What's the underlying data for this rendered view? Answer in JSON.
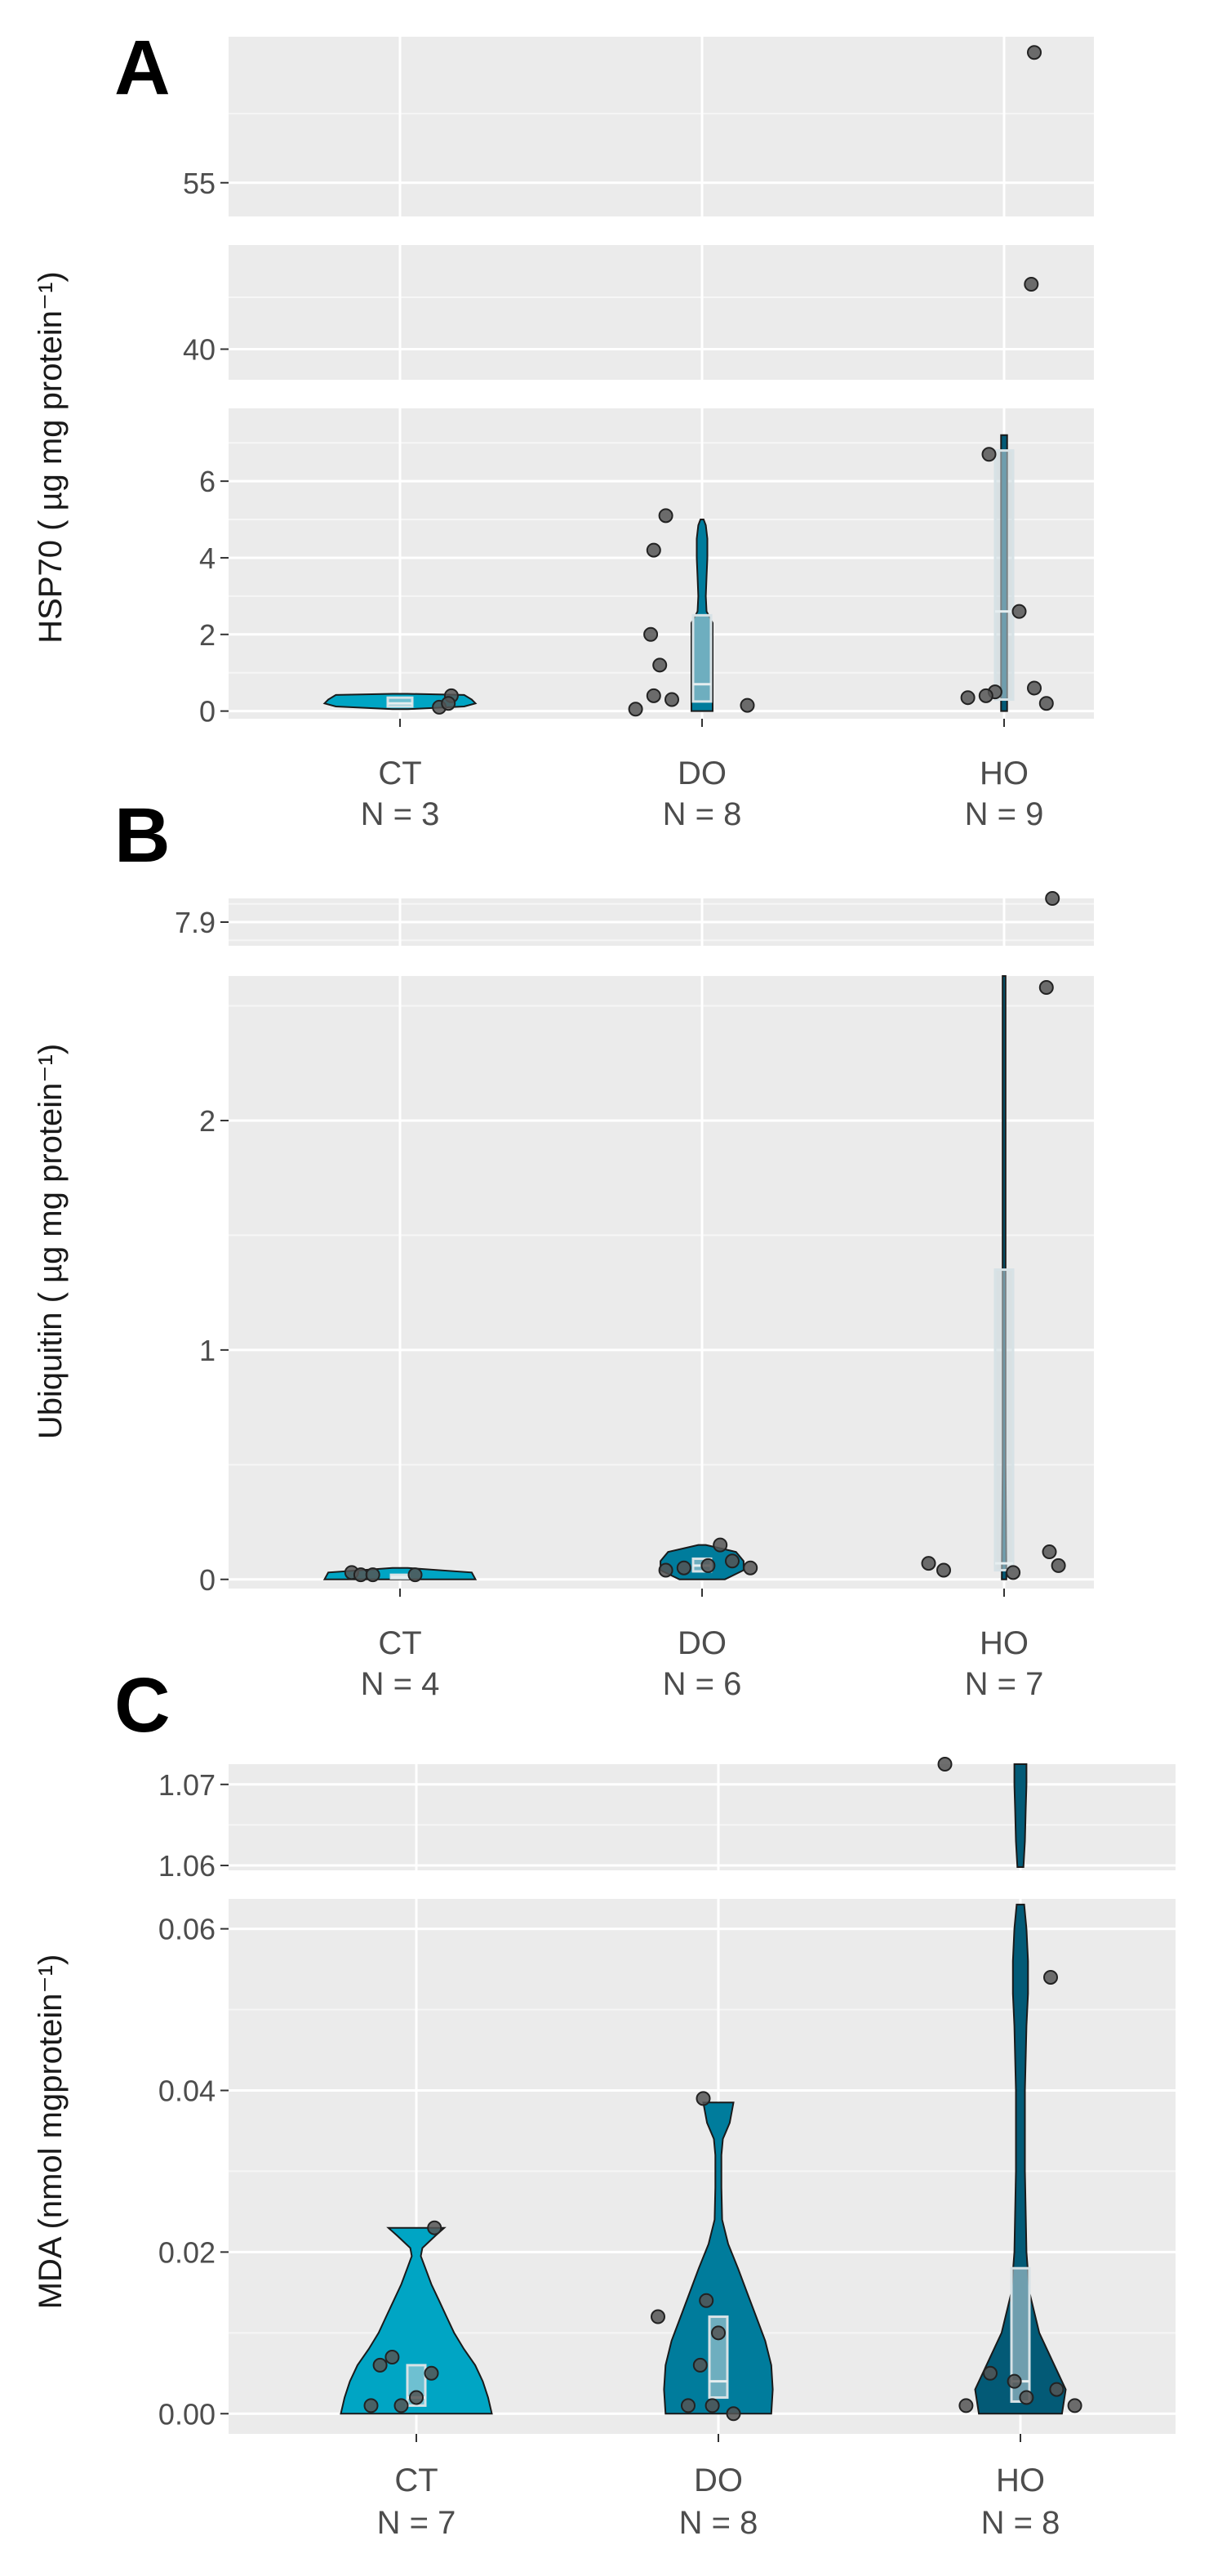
{
  "chart_data": [
    {
      "type": "violin",
      "panel_letter": "A",
      "ylabel": "HSP70 ( µg mg protein⁻¹)",
      "categories": [
        "CT",
        "DO",
        "HO"
      ],
      "n_labels": [
        "N = 3",
        "N = 8",
        "N = 9"
      ],
      "colors": [
        "#00a5c4",
        "#007c9c",
        "#035a76"
      ],
      "segments": [
        {
          "ylim": [
            -0.2,
            7.9
          ],
          "ticks": [
            0,
            2,
            4,
            6
          ],
          "tick_labels": [
            "0",
            "2",
            "4",
            "6"
          ]
        },
        {
          "ylim": [
            37.5,
            48.5
          ],
          "ticks": [
            40
          ],
          "tick_labels": [
            "40"
          ]
        },
        {
          "ylim": [
            53.5,
            61.5
          ],
          "ticks": [
            55
          ],
          "tick_labels": [
            "55"
          ]
        }
      ],
      "groups": [
        {
          "points": [
            [
              0.13,
              0.1
            ],
            [
              0.17,
              0.4
            ],
            [
              0.16,
              0.2
            ]
          ],
          "box": {
            "q1": 0.12,
            "median": 0.2,
            "q3": 0.35
          },
          "violin": [
            [
              0.05,
              0.1
            ],
            [
              0.12,
              0.85
            ],
            [
              0.2,
              1
            ],
            [
              0.3,
              0.95
            ],
            [
              0.42,
              0.85
            ],
            [
              0.45,
              0.1
            ]
          ]
        },
        {
          "points": [
            [
              -0.12,
              5.1
            ],
            [
              -0.16,
              4.2
            ],
            [
              -0.17,
              2.0
            ],
            [
              -0.14,
              1.2
            ],
            [
              -0.16,
              0.4
            ],
            [
              -0.22,
              0.05
            ],
            [
              -0.1,
              0.3
            ],
            [
              0.15,
              0.15
            ]
          ],
          "box": {
            "q1": 0.25,
            "median": 0.7,
            "q3": 2.5
          },
          "violin": [
            [
              0.0,
              0.14
            ],
            [
              0.3,
              0.14
            ],
            [
              0.7,
              0.14
            ],
            [
              1.5,
              0.14
            ],
            [
              2.3,
              0.14
            ],
            [
              2.6,
              0.06
            ],
            [
              3.0,
              0.05
            ],
            [
              3.5,
              0.06
            ],
            [
              4.0,
              0.07
            ],
            [
              4.5,
              0.07
            ],
            [
              4.85,
              0.05
            ],
            [
              5.0,
              0.02
            ]
          ]
        },
        {
          "points": [
            [
              60.8,
              60.8
            ],
            [
              45.3,
              45.3
            ],
            [
              6.7,
              6.7
            ],
            [
              2.6,
              2.6
            ],
            [
              0.6,
              0.6
            ],
            [
              0.5,
              0.5
            ],
            [
              0.4,
              0.4
            ],
            [
              0.35,
              0.35
            ],
            [
              0.2,
              0.2
            ]
          ],
          "point_x": [
            0.1,
            0.09,
            -0.05,
            0.05,
            0.1,
            -0.03,
            -0.06,
            -0.12,
            0.14
          ],
          "box": {
            "q1": 0.3,
            "median": 2.6,
            "q3": 6.8
          },
          "violin": [
            [
              0.0,
              0.04
            ],
            [
              0.5,
              0.04
            ],
            [
              2.0,
              0.04
            ],
            [
              4.0,
              0.04
            ],
            [
              6.0,
              0.04
            ],
            [
              7.2,
              0.04
            ]
          ]
        }
      ]
    },
    {
      "type": "violin",
      "panel_letter": "B",
      "ylabel": "Ubiquitin ( µg mg protein⁻¹)",
      "categories": [
        "CT",
        "DO",
        "HO"
      ],
      "n_labels": [
        "N = 4",
        "N = 6",
        "N = 7"
      ],
      "colors": [
        "#00a5c4",
        "#007c9c",
        "#035a76"
      ],
      "segments": [
        {
          "ylim": [
            -0.04,
            2.63
          ],
          "ticks": [
            0,
            1,
            2
          ],
          "tick_labels": [
            "0",
            "1",
            "2"
          ]
        },
        {
          "ylim": [
            7.86,
            7.94
          ],
          "ticks": [
            7.9
          ],
          "tick_labels": [
            "7.9"
          ]
        }
      ],
      "groups": [
        {
          "points": [
            [
              -0.16,
              0.03
            ],
            [
              -0.13,
              0.02
            ],
            [
              -0.09,
              0.02
            ],
            [
              0.05,
              0.02
            ]
          ],
          "box": {
            "q1": 0.005,
            "median": 0.01,
            "q3": 0.02
          },
          "violin": [
            [
              0.0,
              1
            ],
            [
              0.03,
              0.95
            ],
            [
              0.05,
              0.1
            ]
          ]
        },
        {
          "points": [
            [
              -0.12,
              0.04
            ],
            [
              -0.06,
              0.05
            ],
            [
              0.02,
              0.06
            ],
            [
              0.06,
              0.15
            ],
            [
              0.1,
              0.08
            ],
            [
              0.16,
              0.05
            ]
          ],
          "box": {
            "q1": 0.035,
            "median": 0.06,
            "q3": 0.09
          },
          "violin": [
            [
              0.0,
              0.3
            ],
            [
              0.04,
              0.55
            ],
            [
              0.08,
              0.55
            ],
            [
              0.12,
              0.45
            ],
            [
              0.15,
              0.05
            ]
          ]
        },
        {
          "points": [
            [
              7.95,
              7.95
            ],
            [
              2.58,
              2.58
            ],
            [
              0.12,
              0.12
            ],
            [
              0.07,
              0.07
            ],
            [
              0.06,
              0.06
            ],
            [
              0.04,
              0.04
            ],
            [
              0.03,
              0.03
            ]
          ],
          "point_x": [
            0.16,
            0.14,
            0.15,
            -0.25,
            0.18,
            -0.2,
            0.03
          ],
          "box": {
            "q1": 0.04,
            "median": 0.07,
            "q3": 1.35
          },
          "violin": [
            [
              0.0,
              0.03
            ],
            [
              0.5,
              0.02
            ],
            [
              1.0,
              0.02
            ],
            [
              2.0,
              0.02
            ],
            [
              2.63,
              0.02
            ]
          ]
        }
      ]
    },
    {
      "type": "violin",
      "panel_letter": "C",
      "ylabel": "MDA (nmol mgprotein⁻¹)",
      "categories": [
        "CT",
        "DO",
        "HO"
      ],
      "n_labels": [
        "N = 7",
        "N = 8",
        "N = 8"
      ],
      "colors": [
        "#00a5c4",
        "#007c9c",
        "#035a76"
      ],
      "segments": [
        {
          "ylim": [
            -0.0025,
            0.0637
          ],
          "ticks": [
            0.0,
            0.02,
            0.04,
            0.06
          ],
          "tick_labels": [
            "0.00",
            "0.02",
            "0.04",
            "0.06"
          ]
        },
        {
          "ylim": [
            1.0594,
            1.0725
          ],
          "ticks": [
            1.06,
            1.07
          ],
          "tick_labels": [
            "1.06",
            "1.07"
          ]
        }
      ],
      "groups": [
        {
          "points": [
            [
              0.06,
              0.023
            ],
            [
              -0.08,
              0.007
            ],
            [
              -0.12,
              0.006
            ],
            [
              0.05,
              0.005
            ],
            [
              0.0,
              0.002
            ],
            [
              -0.05,
              0.001
            ],
            [
              -0.15,
              0.001
            ]
          ],
          "box": {
            "q1": 0.001,
            "median": 0.002,
            "q3": 0.006
          },
          "violin": [
            [
              0.0,
              1
            ],
            [
              0.002,
              0.95
            ],
            [
              0.004,
              0.88
            ],
            [
              0.006,
              0.78
            ],
            [
              0.008,
              0.63
            ],
            [
              0.01,
              0.5
            ],
            [
              0.012,
              0.4
            ],
            [
              0.014,
              0.3
            ],
            [
              0.016,
              0.2
            ],
            [
              0.018,
              0.12
            ],
            [
              0.0195,
              0.06
            ],
            [
              0.0205,
              0.08
            ],
            [
              0.022,
              0.25
            ],
            [
              0.023,
              0.37
            ]
          ]
        },
        {
          "points": [
            [
              -0.05,
              0.039
            ],
            [
              -0.2,
              0.012
            ],
            [
              -0.04,
              0.014
            ],
            [
              0.0,
              0.01
            ],
            [
              -0.06,
              0.006
            ],
            [
              -0.1,
              0.001
            ],
            [
              -0.02,
              0.001
            ],
            [
              0.05,
              0.0
            ]
          ],
          "box": {
            "q1": 0.002,
            "median": 0.004,
            "q3": 0.012
          },
          "violin": [
            [
              0.0,
              0.7
            ],
            [
              0.003,
              0.72
            ],
            [
              0.006,
              0.7
            ],
            [
              0.009,
              0.62
            ],
            [
              0.012,
              0.5
            ],
            [
              0.015,
              0.38
            ],
            [
              0.018,
              0.26
            ],
            [
              0.021,
              0.13
            ],
            [
              0.024,
              0.05
            ],
            [
              0.028,
              0.04
            ],
            [
              0.032,
              0.04
            ],
            [
              0.034,
              0.06
            ],
            [
              0.036,
              0.15
            ],
            [
              0.0385,
              0.2
            ]
          ]
        },
        {
          "points": [
            [
              1.0725,
              1.0725
            ],
            [
              0.054,
              0.054
            ],
            [
              0.005,
              0.005
            ],
            [
              0.004,
              0.004
            ],
            [
              0.003,
              0.003
            ],
            [
              0.002,
              0.002
            ],
            [
              0.001,
              0.001
            ],
            [
              0.001,
              0.001
            ]
          ],
          "point_x": [
            -0.25,
            0.1,
            -0.1,
            -0.02,
            0.12,
            0.02,
            -0.18,
            0.18
          ],
          "box": {
            "q1": 0.0015,
            "median": 0.004,
            "q3": 0.018
          },
          "violin": [
            [
              0.0,
              0.55
            ],
            [
              0.003,
              0.6
            ],
            [
              0.006,
              0.45
            ],
            [
              0.01,
              0.25
            ],
            [
              0.015,
              0.12
            ],
            [
              0.02,
              0.08
            ],
            [
              0.03,
              0.06
            ],
            [
              0.04,
              0.06
            ],
            [
              0.048,
              0.08
            ],
            [
              0.052,
              0.1
            ],
            [
              0.056,
              0.1
            ],
            [
              0.06,
              0.08
            ],
            [
              0.063,
              0.05
            ]
          ],
          "violin_top": [
            [
              1.0598,
              0.04
            ],
            [
              1.063,
              0.06
            ],
            [
              1.067,
              0.07
            ],
            [
              1.07,
              0.08
            ],
            [
              1.0725,
              0.08
            ]
          ]
        }
      ]
    }
  ]
}
